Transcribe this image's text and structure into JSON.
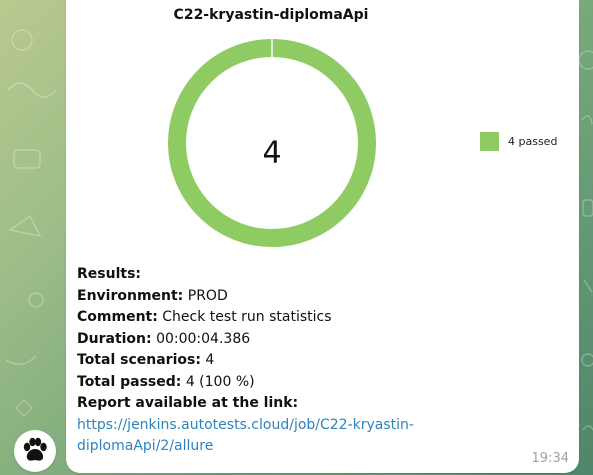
{
  "chart": {
    "title": "C22-kryastin-diplomaApi",
    "center_value": "4",
    "legend_label": "4 passed",
    "color": "#8fcb63"
  },
  "chart_data": {
    "type": "pie",
    "title": "C22-kryastin-diplomaApi",
    "categories": [
      "passed"
    ],
    "values": [
      4
    ],
    "legend": [
      "4 passed"
    ],
    "legend_position": "right",
    "colors": [
      "#8fcb63"
    ]
  },
  "message": {
    "results_label": "Results:",
    "environment_label": "Environment:",
    "environment_value": "PROD",
    "comment_label": "Comment:",
    "comment_value": "Check test run statistics",
    "duration_label": "Duration:",
    "duration_value": "00:00:04.386",
    "total_scenarios_label": "Total scenarios:",
    "total_scenarios_value": "4",
    "total_passed_label": "Total passed:",
    "total_passed_value": "4 (100 %)",
    "report_label": "Report available at the link:",
    "report_link": "https://jenkins.autotests.cloud/job/C22-kryastin-diplomaApi/2/allure"
  },
  "timestamp": "19:34",
  "avatar": {
    "icon": "paw-icon"
  },
  "colors": {
    "link": "#2d83bd",
    "passed": "#8fcb63",
    "timestamp": "#9aa3ab"
  }
}
